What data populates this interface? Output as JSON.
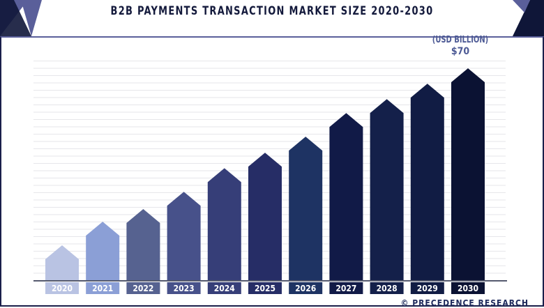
{
  "chart_data": {
    "type": "bar",
    "title": "B2B PAYMENTS TRANSACTION MARKET SIZE 2020-2030",
    "unit_label": "(USD BILLION)",
    "annotation": "$70",
    "categories": [
      "2020",
      "2021",
      "2022",
      "2023",
      "2024",
      "2025",
      "2026",
      "2027",
      "2028",
      "2029",
      "2030"
    ],
    "values": [
      11.5,
      19.3,
      23.5,
      29.2,
      37.0,
      42.1,
      47.4,
      55.2,
      59.8,
      64.9,
      70
    ],
    "ylim": [
      0,
      70
    ],
    "grid": true,
    "colors": [
      "#b9c3e3",
      "#8b9fd6",
      "#566290",
      "#47518a",
      "#363e78",
      "#262d66",
      "#1e3363",
      "#111a47",
      "#14204a",
      "#111c44",
      "#0b1233"
    ]
  },
  "footer": {
    "copyright": "© PRECEDENCE RESEARCH"
  }
}
